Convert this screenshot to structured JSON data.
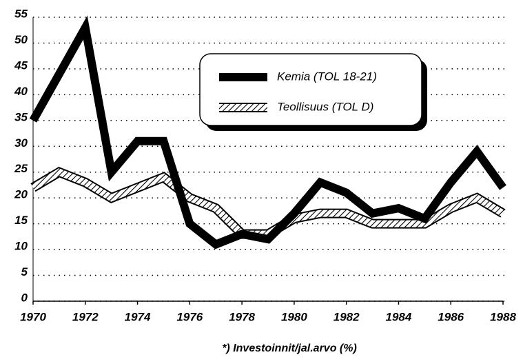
{
  "chart_data": {
    "type": "line",
    "x": [
      1970,
      1971,
      1972,
      1973,
      1974,
      1975,
      1976,
      1977,
      1978,
      1979,
      1980,
      1981,
      1982,
      1983,
      1984,
      1985,
      1986,
      1987,
      1988
    ],
    "series": [
      {
        "name": "Kemia (TOL 18-21)",
        "color": "#000000",
        "pattern": "solid",
        "values": [
          35,
          44,
          53,
          25,
          31,
          31,
          15,
          11,
          13,
          12,
          17,
          23,
          21,
          17,
          18,
          16,
          23,
          29,
          22
        ]
      },
      {
        "name": "Teollisuus (TOL D)",
        "color": "#000000",
        "pattern": "hatched",
        "values": [
          22,
          25,
          23,
          20,
          22,
          24,
          20,
          18,
          13,
          13,
          16,
          17,
          17,
          15,
          15,
          15,
          18,
          20,
          17
        ]
      }
    ],
    "xlim": [
      1970,
      1988
    ],
    "xticks": [
      1970,
      1972,
      1974,
      1976,
      1978,
      1980,
      1982,
      1984,
      1986,
      1988
    ],
    "ylim": [
      0,
      55
    ],
    "yticks": [
      0,
      5,
      10,
      15,
      20,
      25,
      30,
      35,
      40,
      45,
      50,
      55
    ],
    "grid": true,
    "xlabel": "*) Investoinnit/jal.arvo (%)"
  }
}
